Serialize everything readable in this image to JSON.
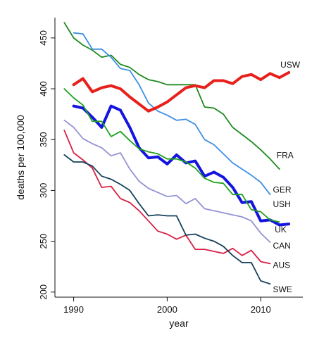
{
  "chart_data": {
    "type": "line",
    "xlabel": "year",
    "ylabel": "deaths per 100,000",
    "xlim": [
      1988,
      2014.5
    ],
    "ylim": [
      195,
      470
    ],
    "x_ticks": [
      1990,
      2000,
      2010
    ],
    "y_ticks": [
      200,
      250,
      300,
      350,
      400,
      450
    ],
    "grid": false,
    "legend": "labels at line ends",
    "series": [
      {
        "name": "FRA",
        "color": "#1e8a1e",
        "width": 1.8,
        "x": [
          1989,
          1990,
          1991,
          1992,
          1993,
          1994,
          1995,
          1996,
          1997,
          1998,
          1999,
          2000,
          2001,
          2002,
          2003,
          2004,
          2005,
          2006,
          2007,
          2008,
          2009,
          2010,
          2011,
          2012
        ],
        "y": [
          465,
          450,
          443,
          438,
          431,
          433,
          424,
          421,
          414,
          409,
          407,
          404,
          404,
          404,
          404,
          382,
          381,
          375,
          362,
          355,
          348,
          340,
          331,
          321
        ]
      },
      {
        "name": "GER",
        "color": "#3d8fe6",
        "width": 1.8,
        "x": [
          1990,
          1991,
          1992,
          1993,
          1994,
          1995,
          1996,
          1997,
          1998,
          1999,
          2000,
          2001,
          2002,
          2003,
          2004,
          2005,
          2006,
          2007,
          2008,
          2009,
          2010,
          2011
        ],
        "y": [
          455,
          454,
          439,
          439,
          431,
          420,
          418,
          404,
          386,
          378,
          374,
          369,
          370,
          365,
          350,
          345,
          336,
          327,
          321,
          315,
          308,
          296
        ]
      },
      {
        "name": "USW",
        "color": "#e8201c",
        "width": 4,
        "x": [
          1990,
          1991,
          1992,
          1993,
          1994,
          1995,
          1996,
          1997,
          1998,
          1999,
          2000,
          2001,
          2002,
          2003,
          2004,
          2005,
          2006,
          2007,
          2008,
          2009,
          2010,
          2011,
          2012,
          2013
        ],
        "y": [
          404,
          410,
          397,
          401,
          403,
          400,
          392,
          385,
          378,
          382,
          387,
          394,
          401,
          403,
          401,
          408,
          408,
          405,
          412,
          414,
          409,
          415,
          411,
          416
        ]
      },
      {
        "name": "USH",
        "color": "#1414e0",
        "width": 4,
        "x": [
          1990,
          1991,
          1992,
          1993,
          1994,
          1995,
          1996,
          1997,
          1998,
          1999,
          2000,
          2001,
          2002,
          2003,
          2004,
          2005,
          2006,
          2007,
          2008,
          2009,
          2010,
          2011,
          2012,
          2013
        ],
        "y": [
          383,
          381,
          372,
          362,
          383,
          379,
          362,
          342,
          332,
          333,
          326,
          335,
          327,
          329,
          314,
          318,
          313,
          303,
          288,
          289,
          270,
          271,
          266,
          267
        ]
      },
      {
        "name": "",
        "color": "#1ea21e",
        "width": 1.8,
        "x": [
          1989,
          1990,
          1991,
          1992,
          1993,
          1994,
          1995,
          1996,
          1997,
          1998,
          1999,
          2000,
          2001,
          2002,
          2003,
          2004,
          2005,
          2006,
          2007,
          2008,
          2009,
          2010,
          2011,
          2012
        ],
        "y": [
          400,
          391,
          384,
          368,
          368,
          353,
          358,
          349,
          341,
          338,
          336,
          331,
          331,
          328,
          322,
          312,
          308,
          307,
          296,
          296,
          281,
          279,
          271,
          269
        ]
      },
      {
        "name": "",
        "color": "#9393d4",
        "width": 1.8,
        "x": [
          1989,
          1990,
          1991,
          1992,
          1993,
          1994,
          1995,
          1996,
          1997,
          1998,
          1999,
          2000,
          2001,
          2002,
          2003,
          2004,
          2005,
          2006,
          2007,
          2008,
          2009,
          2010,
          2011
        ],
        "y": [
          369,
          362,
          351,
          346,
          342,
          334,
          337,
          321,
          309,
          302,
          298,
          294,
          295,
          287,
          292,
          282,
          280,
          278,
          276,
          274,
          270,
          258,
          249
        ]
      },
      {
        "name": "",
        "color": "#d81e45",
        "width": 1.8,
        "x": [
          1989,
          1990,
          1991,
          1992,
          1993,
          1994,
          1995,
          1996,
          1997,
          1998,
          1999,
          2000,
          2001,
          2002,
          2003,
          2004,
          2005,
          2006,
          2007,
          2008,
          2009,
          2010,
          2011
        ],
        "y": [
          359,
          337,
          330,
          322,
          303,
          304,
          292,
          288,
          280,
          270,
          260,
          257,
          252,
          256,
          242,
          242,
          240,
          238,
          243,
          236,
          241,
          230,
          228
        ]
      },
      {
        "name": "",
        "color": "#15415a",
        "width": 1.8,
        "x": [
          1989,
          1990,
          1991,
          1992,
          1993,
          1994,
          1995,
          1996,
          1997,
          1998,
          1999,
          2000,
          2001,
          2002,
          2003,
          2004,
          2005,
          2006,
          2007,
          2008,
          2009,
          2010,
          2011
        ],
        "y": [
          335,
          328,
          328,
          324,
          314,
          311,
          306,
          300,
          287,
          275,
          276,
          275,
          275,
          256,
          257,
          253,
          250,
          245,
          236,
          229,
          229,
          211,
          208
        ]
      }
    ],
    "labels": [
      {
        "text": "USW",
        "x": 2012.1,
        "y": 423
      },
      {
        "text": "FRA",
        "x": 2011.7,
        "y": 334
      },
      {
        "text": "GER",
        "x": 2011.3,
        "y": 300
      },
      {
        "text": "USH",
        "x": 2011.3,
        "y": 286
      },
      {
        "text": "UK",
        "x": 2011.5,
        "y": 261
      },
      {
        "text": "CAN",
        "x": 2011.3,
        "y": 245
      },
      {
        "text": "AUS",
        "x": 2011.3,
        "y": 226
      },
      {
        "text": "SWE",
        "x": 2011.3,
        "y": 202
      }
    ]
  }
}
